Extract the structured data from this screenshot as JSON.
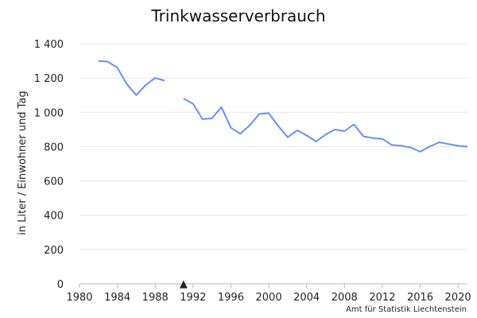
{
  "chart_data": {
    "type": "line",
    "title": "Trinkwasserverbrauch",
    "xlabel": "",
    "ylabel": "in Liter / Einwohner und Tag",
    "source": "Amt für Statistik Liechtenstein",
    "marker_symbol": "▲",
    "marker_x": 1991,
    "xlim": [
      1980,
      2021
    ],
    "ylim": [
      0,
      1400
    ],
    "x_ticks": [
      1980,
      1984,
      1988,
      1992,
      1996,
      2000,
      2004,
      2008,
      2012,
      2016,
      2020
    ],
    "y_ticks": [
      0,
      200,
      400,
      600,
      800,
      1000,
      1200,
      1400
    ],
    "y_tick_labels": [
      "0",
      "200",
      "400",
      "600",
      "800",
      "1 000",
      "1 200",
      "1 400"
    ],
    "grid": true,
    "line_color": "#6b8ff0",
    "series": [
      {
        "segments": [
          {
            "x": [
              1982,
              1983,
              1984,
              1985,
              1986,
              1987,
              1988,
              1989
            ],
            "y": [
              1300,
              1295,
              1260,
              1165,
              1100,
              1160,
              1200,
              1185
            ]
          },
          {
            "x": [
              1991,
              1992,
              1993,
              1994,
              1995,
              1996,
              1997,
              1998,
              1999,
              2000,
              2001,
              2002,
              2003,
              2004,
              2005,
              2006,
              2007,
              2008,
              2009,
              2010,
              2011,
              2012,
              2013,
              2014,
              2015,
              2016,
              2017,
              2018,
              2019,
              2020,
              2021
            ],
            "y": [
              1080,
              1050,
              960,
              965,
              1030,
              910,
              875,
              925,
              990,
              995,
              920,
              855,
              895,
              865,
              830,
              870,
              900,
              890,
              930,
              860,
              850,
              845,
              810,
              805,
              795,
              770,
              800,
              825,
              815,
              805,
              800
            ]
          }
        ]
      }
    ]
  }
}
